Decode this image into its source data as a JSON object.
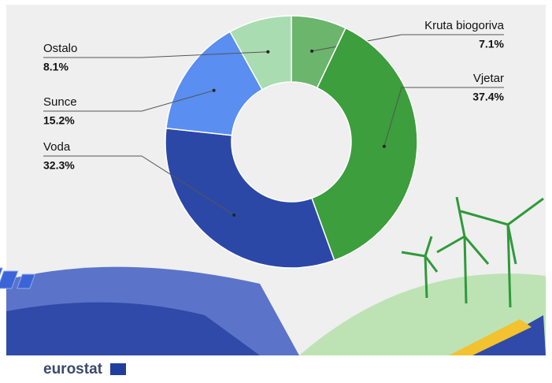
{
  "chart_data": {
    "type": "donut",
    "categories": [
      "Kruta biogoriva",
      "Vjetar",
      "Voda",
      "Sunce",
      "Ostalo"
    ],
    "values": [
      7.1,
      37.4,
      32.3,
      15.2,
      8.1
    ],
    "value_labels": [
      "7.1%",
      "37.4%",
      "32.3%",
      "15.2%",
      "8.1%"
    ],
    "colors": [
      "#6cb56c",
      "#3c9e3c",
      "#2c48a6",
      "#5a8ef0",
      "#a9dcb1"
    ]
  },
  "logo": "eurostat"
}
